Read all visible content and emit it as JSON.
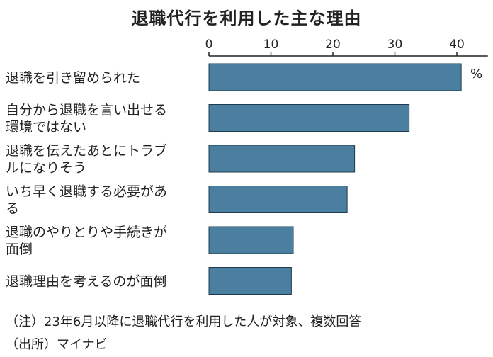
{
  "chart_data": {
    "type": "bar",
    "orientation": "horizontal",
    "title": "退職代行を利用した主な理由",
    "unit": "%",
    "xlim": [
      0,
      45
    ],
    "ticks": [
      0,
      10,
      20,
      30,
      40
    ],
    "axis_position": "top",
    "grid": false,
    "bar_color": "#4a7fa0",
    "categories": [
      [
        "退職を引き留められた"
      ],
      [
        "自分から退職を言い出せる",
        "環境ではない"
      ],
      [
        "退職を伝えたあとにトラブ",
        "ルになりそう"
      ],
      [
        "いち早く退職する必要があ",
        "る"
      ],
      [
        "退職のやりとりや手続きが",
        "面倒"
      ],
      [
        "退職理由を考えるのが面倒"
      ]
    ],
    "values": [
      40.7,
      32.3,
      23.5,
      22.3,
      13.6,
      13.3
    ]
  },
  "notes": {
    "note1": "（注）23年6月以降に退職代行を利用した人が対象、複数回答",
    "source": "（出所）マイナビ"
  }
}
